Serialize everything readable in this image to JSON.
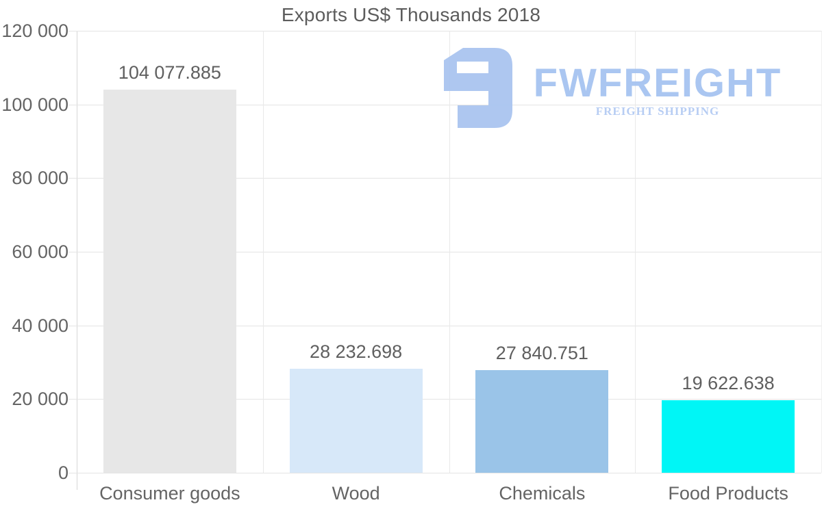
{
  "title": "Exports US$ Thousands 2018",
  "logo": {
    "brand": "FWFREIGHT",
    "tagline": "FREIGHT SHIPPING",
    "color": "#aac5f0"
  },
  "chart_data": {
    "type": "bar",
    "title": "Exports US$ Thousands 2018",
    "categories": [
      "Consumer goods",
      "Wood",
      "Chemicals",
      "Food Products"
    ],
    "values": [
      104077.885,
      28232.698,
      27840.751,
      19622.638
    ],
    "display_values": [
      "104 077.885",
      "28 232.698",
      "27 840.751",
      "19 622.638"
    ],
    "bar_colors": [
      "#e7e7e7",
      "#d7e8f9",
      "#9ac4e8",
      "#00f6f6"
    ],
    "xlabel": "",
    "ylabel": "",
    "ylim": [
      0,
      120000
    ],
    "yticks": [
      {
        "value": 0,
        "label": "0"
      },
      {
        "value": 20000,
        "label": "20 000"
      },
      {
        "value": 40000,
        "label": "40 000"
      },
      {
        "value": 60000,
        "label": "60 000"
      },
      {
        "value": 80000,
        "label": "80 000"
      },
      {
        "value": 100000,
        "label": "100 000"
      },
      {
        "value": 120000,
        "label": "120 000"
      }
    ],
    "grid": true,
    "legend": "none",
    "text_color": "#646464",
    "grid_color": "#e4e4e4"
  }
}
